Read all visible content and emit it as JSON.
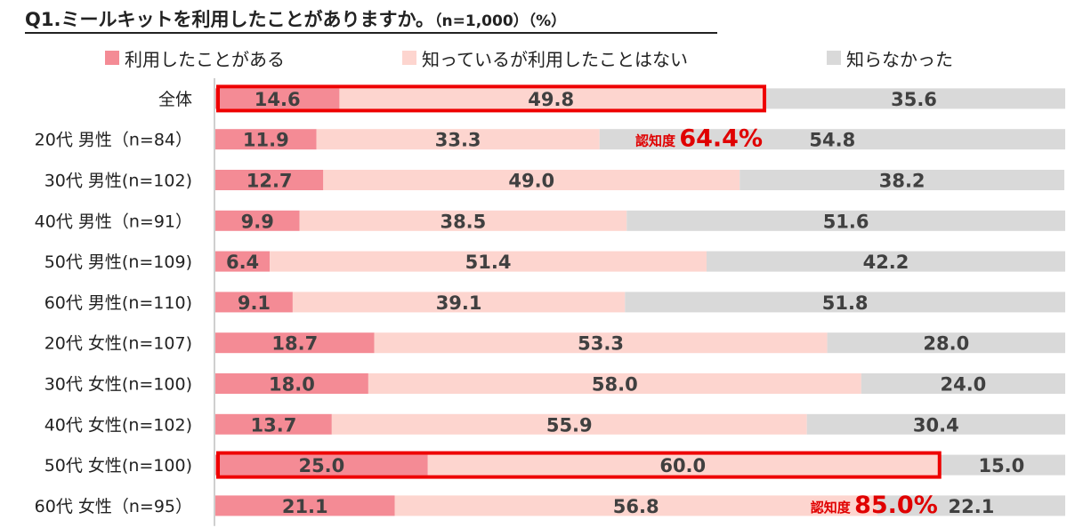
{
  "chart_data": {
    "type": "bar",
    "orientation": "horizontal",
    "stacked": true,
    "title": "Q1.ミールキットを利用したことがありますか。",
    "subtitle": "（n=1,000）（%）",
    "categories": [
      "全体",
      "20代 男性（n=84）",
      "30代 男性(n=102)",
      "40代 男性（n=91）",
      "50代 男性(n=109)",
      "60代 男性(n=110)",
      "20代 女性(n=107)",
      "30代 女性(n=100)",
      "40代 女性(n=102)",
      "50代 女性(n=100)",
      "60代 女性（n=95）"
    ],
    "series": [
      {
        "name": "利用したことがある",
        "color": "#f48b95",
        "values": [
          14.6,
          11.9,
          12.7,
          9.9,
          6.4,
          9.1,
          18.7,
          18.0,
          13.7,
          25.0,
          21.1
        ]
      },
      {
        "name": "知っているが利用したことはない",
        "color": "#fdd5cf",
        "values": [
          49.8,
          33.3,
          49.0,
          38.5,
          51.4,
          39.1,
          53.3,
          58.0,
          55.9,
          60.0,
          56.8
        ]
      },
      {
        "name": "知らなかった",
        "color": "#d9d9d9",
        "values": [
          35.6,
          54.8,
          38.2,
          51.6,
          42.2,
          51.8,
          28.0,
          24.0,
          30.4,
          15.0,
          22.1
        ]
      }
    ],
    "xlim": [
      0,
      100
    ],
    "legend_position": "top",
    "grid": false,
    "annotations": [
      {
        "label": "認知度",
        "value": "64.4%"
      },
      {
        "label": "認知度",
        "value": "85.0%"
      }
    ],
    "highlight_boxes": [
      {
        "category": "全体",
        "series": [
          "利用したことがある",
          "知っているが利用したことはない"
        ]
      },
      {
        "category": "50代 女性(n=100)",
        "series": [
          "利用したことがある",
          "知っているが利用したことはない"
        ]
      }
    ],
    "highlight_color": "#ee0000"
  }
}
